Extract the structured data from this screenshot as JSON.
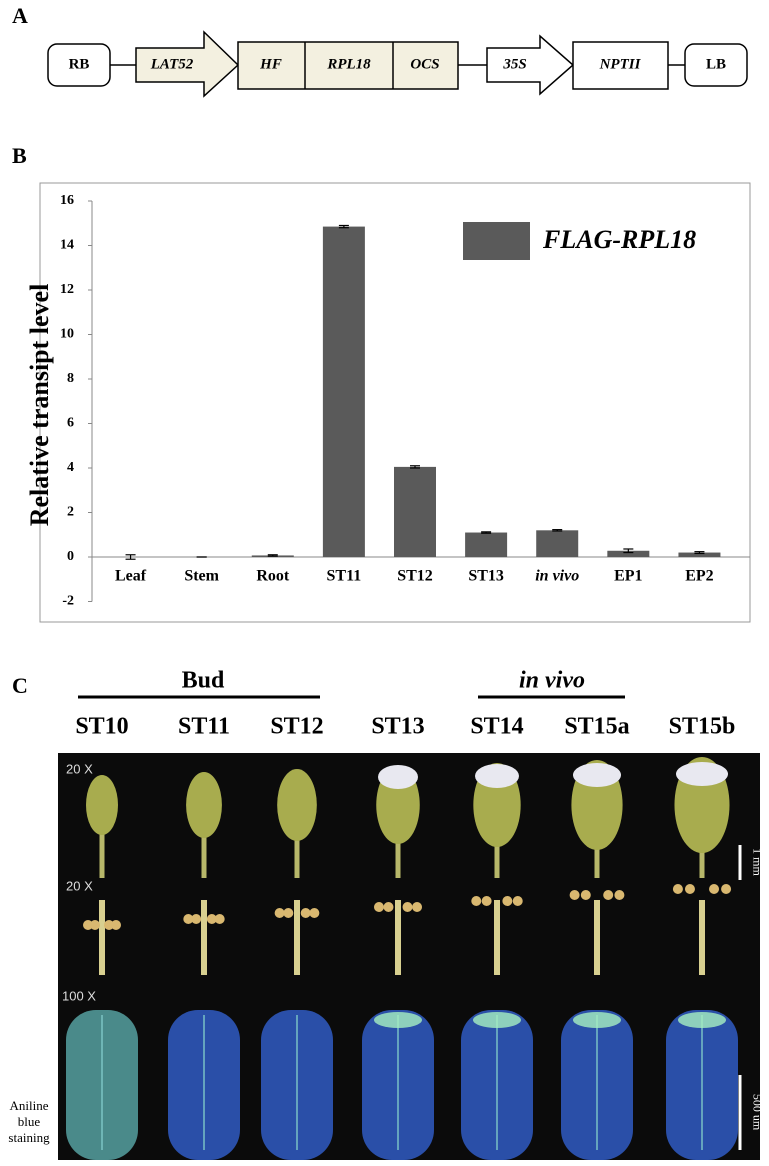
{
  "panel_labels": [
    "A",
    "B",
    "C"
  ],
  "panel_a": {
    "elements": [
      "RB",
      "LAT52",
      "HF",
      "RPL18",
      "OCS",
      "35S",
      "NPTII",
      "LB"
    ]
  },
  "chart_data": {
    "type": "bar",
    "ylabel": "Relative transipt level",
    "categories": [
      "Leaf",
      "Stem",
      "Root",
      "ST11",
      "ST12",
      "ST13",
      "in vivo",
      "EP1",
      "EP2"
    ],
    "series": [
      {
        "name": "FLAG-RPL18",
        "color": "#5a5a5a",
        "values": [
          0,
          0,
          0.07,
          14.85,
          4.05,
          1.1,
          1.2,
          0.28,
          0.2
        ],
        "errors": [
          0.1,
          0,
          0.03,
          0.05,
          0.05,
          0.03,
          0.03,
          0.08,
          0.04
        ]
      }
    ],
    "ylim": [
      -2,
      16
    ],
    "yticks": [
      -2,
      0,
      2,
      4,
      6,
      8,
      10,
      12,
      14,
      16
    ],
    "grid": false
  },
  "panel_c": {
    "groups": [
      "Bud",
      "in vivo"
    ],
    "stages": [
      "ST10",
      "ST11",
      "ST12",
      "ST13",
      "ST14",
      "ST15a",
      "ST15b"
    ],
    "magnifications": [
      "20 X",
      "20 X",
      "100 X"
    ],
    "row_label": "Aniline blue staining",
    "scale_bars": [
      "1 mm",
      "500 um"
    ]
  }
}
